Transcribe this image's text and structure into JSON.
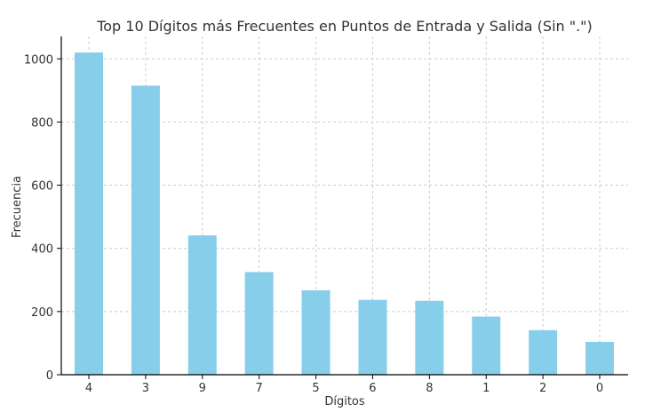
{
  "chart_data": {
    "type": "bar",
    "title": "Top 10 Dígitos más Frecuentes en Puntos de Entrada y Salida (Sin \".\")",
    "xlabel": "Dígitos",
    "ylabel": "Frecuencia",
    "categories": [
      "4",
      "3",
      "9",
      "7",
      "5",
      "6",
      "8",
      "1",
      "2",
      "0"
    ],
    "values": [
      1020,
      915,
      441,
      325,
      267,
      237,
      234,
      184,
      141,
      104
    ],
    "ylim": [
      0,
      1071
    ],
    "yticks": [
      0,
      200,
      400,
      600,
      800,
      1000
    ],
    "grid": true,
    "bar_color": "#87ceeb",
    "grid_color": "#cccccc",
    "axis_color": "#000000",
    "text_color": "#333333"
  }
}
